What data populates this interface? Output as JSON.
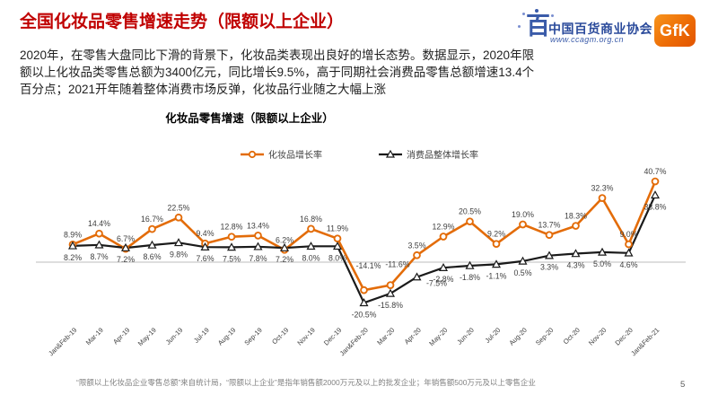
{
  "slide": {
    "title": "全国化妆品零售增速走势（限额以上企业）",
    "body_lines": [
      "2020年，在零售大盘同比下滑的背景下，化妆品类表现出良好的增长态势。数据显示，2020年限",
      "额以上化妆品类零售总额为3400亿元，同比增长9.5%，高于同期社会消费品零售总额增速13.4个",
      "百分点；2021开年随着整体消费市场反弹，化妆品行业随之大幅上涨"
    ],
    "footer_note": "“限额以上化妆品企业零售总额”来自统计局，“限额以上企业”是指年销售额2000万元及以上的批发企业；年销售额500万元及以上零售企业",
    "page_number": "5"
  },
  "logos": {
    "association_emblem": "百",
    "association_name": "中国百货商业协会",
    "association_url": "www.ccagm.org.cn",
    "gfk_label": "GfK"
  },
  "chart_data": {
    "type": "line",
    "title": "化妆品零售增速（限额以上企业）",
    "unit": "%",
    "categories": [
      "Jan&Feb-19",
      "Mar-19",
      "Apr-19",
      "May-19",
      "Jun-19",
      "Jul-19",
      "Aug-19",
      "Sep-19",
      "Oct-19",
      "Nov-19",
      "Dec-19",
      "Jan&Feb-20",
      "Mar-20",
      "Apr-20",
      "May-20",
      "Jun-20",
      "Jul-20",
      "Aug-20",
      "Sep-20",
      "Oct-20",
      "Nov-20",
      "Dec-20",
      "Jan&Feb-21"
    ],
    "series": [
      {
        "name": "化妆品增长率",
        "color": "#E36C09",
        "marker": "circle",
        "label_dy": -8,
        "label_offsets": {
          "11": [
            5,
            -24
          ],
          "12": [
            8,
            -20
          ]
        },
        "values": [
          8.9,
          14.4,
          6.7,
          16.7,
          22.5,
          9.4,
          12.8,
          13.4,
          6.2,
          16.8,
          11.9,
          -14.1,
          -11.6,
          3.5,
          12.9,
          20.5,
          9.2,
          19.0,
          13.7,
          18.3,
          32.3,
          9.0,
          40.7
        ]
      },
      {
        "name": "消费品整体增长率",
        "color": "#1A1A1A",
        "marker": "triangle",
        "label_dy": 16,
        "label_offsets": {
          "13": [
            22,
            10
          ]
        },
        "values": [
          8.2,
          8.7,
          7.2,
          8.6,
          9.8,
          7.6,
          7.5,
          7.8,
          7.2,
          8.0,
          8.0,
          -20.5,
          -15.8,
          -7.5,
          -2.8,
          -1.8,
          -1.1,
          0.5,
          3.3,
          4.3,
          5.0,
          4.6,
          33.8
        ]
      }
    ],
    "ylim": [
      -25,
      45
    ],
    "grid": "zero-baseline-only",
    "legend_position": "top-center"
  },
  "colors": {
    "title_red": "#C00000",
    "cosmetics_orange": "#E36C09",
    "consumer_black": "#1A1A1A",
    "baseline_gray": "#C9C9C9",
    "label_gray": "#3F3F3F",
    "logo_blue": "#3A5BA9",
    "gfk_orange": "#ED6C05"
  }
}
